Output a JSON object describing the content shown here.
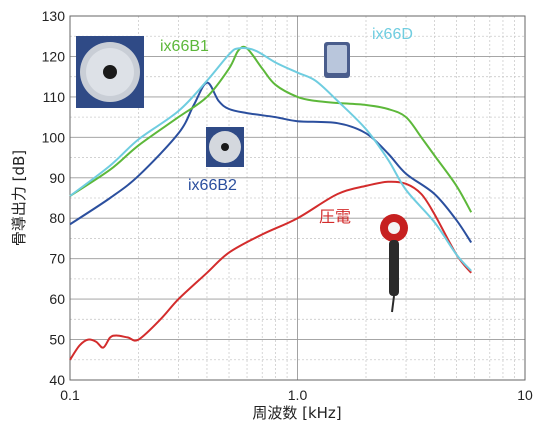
{
  "chart_data": {
    "type": "line",
    "xlabel": "周波数 [kHz]",
    "ylabel": "骨導出力 [dB]",
    "xscale": "log",
    "xlim": [
      0.1,
      10
    ],
    "ylim": [
      40,
      130
    ],
    "grid": true,
    "x_ticks": [
      "0.1",
      "1.0",
      "10"
    ],
    "y_ticks": [
      "40",
      "50",
      "60",
      "70",
      "80",
      "90",
      "100",
      "110",
      "120",
      "130"
    ],
    "series": [
      {
        "name": "ix66B1",
        "color": "#5db83a",
        "x": [
          0.1,
          0.15,
          0.2,
          0.3,
          0.4,
          0.5,
          0.55,
          0.6,
          0.7,
          0.8,
          1.0,
          1.2,
          1.5,
          2.0,
          2.5,
          3.0,
          3.5,
          4.0,
          5.0,
          5.8
        ],
        "y": [
          85.5,
          92,
          98,
          105,
          110,
          117,
          121.5,
          122,
          117,
          113,
          110,
          109,
          108.5,
          108,
          107,
          105,
          100,
          95.5,
          88,
          81.5
        ]
      },
      {
        "name": "ix66B2",
        "color": "#2b4f9e",
        "x": [
          0.1,
          0.15,
          0.2,
          0.3,
          0.35,
          0.4,
          0.45,
          0.5,
          0.6,
          0.8,
          1.0,
          1.5,
          2.0,
          2.5,
          3.0,
          4.0,
          5.0,
          5.8
        ],
        "y": [
          78.5,
          85,
          90.5,
          101,
          108,
          113.5,
          109,
          107,
          106,
          105,
          104,
          103.5,
          101,
          96,
          91,
          86,
          79.5,
          74
        ]
      },
      {
        "name": "ix66D",
        "color": "#6fcde0",
        "x": [
          0.1,
          0.15,
          0.2,
          0.3,
          0.4,
          0.5,
          0.55,
          0.65,
          0.8,
          1.0,
          1.2,
          1.5,
          2.0,
          2.5,
          3.0,
          4.0,
          5.0,
          5.8
        ],
        "y": [
          85.5,
          93,
          99.5,
          106.5,
          114,
          120.5,
          122,
          121.5,
          118.5,
          116,
          114,
          109,
          102,
          94.5,
          87,
          79,
          71,
          67
        ]
      },
      {
        "name": "圧電",
        "color": "#d32c2c",
        "x": [
          0.1,
          0.11,
          0.12,
          0.13,
          0.14,
          0.15,
          0.16,
          0.18,
          0.2,
          0.25,
          0.3,
          0.4,
          0.5,
          0.7,
          1.0,
          1.5,
          2.0,
          2.5,
          3.0,
          3.5,
          4.0,
          5.0,
          5.8
        ],
        "y": [
          45,
          48.5,
          50,
          49.5,
          48,
          50.5,
          51,
          50.5,
          50,
          55,
          60,
          66.5,
          71.5,
          76,
          80,
          86,
          88,
          89,
          88.5,
          86,
          81,
          71,
          66.5
        ]
      }
    ]
  }
}
